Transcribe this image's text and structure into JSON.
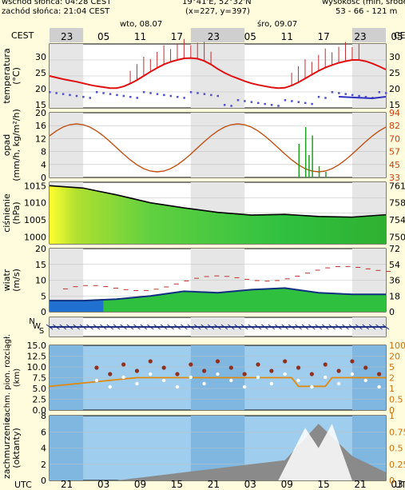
{
  "header": {
    "sunrise": "wschód słońca: 04:28 CEST",
    "sunset": "zachód słońca: 21:04 CEST",
    "location": "19°41'E, 52°32'N",
    "grid": "(x=227, y=397)",
    "altitude_label": "wysokość (min, środek",
    "altitude_values": "53 - 66 - 121 m"
  },
  "timezone_top": "CEST",
  "timezone_bottom": "UTC",
  "days": [
    "wto, 08.07",
    "śro, 09.07"
  ],
  "top_hours": [
    "23",
    "05",
    "11",
    "17",
    "23",
    "05",
    "11",
    "17",
    "23",
    "05"
  ],
  "bottom_hours": [
    "21",
    "03",
    "09",
    "15",
    "21",
    "03",
    "09",
    "15",
    "21",
    "03"
  ],
  "panels": {
    "temperature": {
      "ylabel": [
        "temperatura",
        "(°C)"
      ],
      "ticks": [
        "30",
        "25",
        "20",
        "15"
      ]
    },
    "precip": {
      "ylabel": [
        "opad",
        "(mm/h, kg/m²/h)"
      ],
      "ticks_left": [
        "20",
        "16",
        "12",
        "8",
        "4",
        "0"
      ],
      "ticks_right": [
        "94",
        "82",
        "70",
        "57",
        "45",
        "33"
      ]
    },
    "pressure": {
      "ylabel": [
        "ciśnienie",
        "(hPa)"
      ],
      "ticks_left": [
        "1015",
        "1010",
        "1005",
        "1000"
      ],
      "ticks_right": [
        "761",
        "758",
        "754",
        "750"
      ]
    },
    "wind": {
      "ylabel": [
        "wiatr",
        "(m/s)"
      ],
      "ticks_left": [
        "20",
        "15",
        "10",
        "5",
        "0"
      ],
      "ticks_right": [
        "72",
        "54",
        "36",
        "18",
        "0"
      ]
    },
    "direction": {
      "ylabel": [
        "N",
        "W",
        "S"
      ]
    },
    "visibility": {
      "ylabel": [
        "zachm. pion. rozciągł.",
        "(km)"
      ],
      "ticks_left": [
        "15.0",
        "12.5",
        "10.0",
        "7.5",
        "5.0",
        "2.5",
        "0.0"
      ],
      "ticks_right": [
        "100",
        "20",
        "5",
        "2",
        "1",
        "0.5",
        "0"
      ]
    },
    "cloud": {
      "ylabel": [
        "zachmurzenie",
        "(oktanty)"
      ],
      "ticks_left": [
        "8",
        "6",
        "4",
        "2",
        "0"
      ],
      "ticks_right": [
        "1",
        "0.75",
        "0.5",
        "0.25",
        "0"
      ]
    }
  },
  "colors": {
    "temp_line": "#e01010",
    "dew_line": "#3030c0",
    "precip_line": "#c05010",
    "pressure_fill": "#30b030",
    "wind_line": "#103080",
    "vis_line": "#e08a10",
    "night_shade": "#dcdcdc"
  },
  "chart_data": [
    {
      "type": "line",
      "title": "temperatura",
      "ylabel": "(°C)",
      "ylim": [
        14,
        34
      ],
      "x": [
        0,
        1,
        2,
        3,
        4,
        5,
        6,
        7,
        8,
        9,
        10,
        11,
        12,
        13,
        14,
        15,
        16,
        17,
        18,
        19,
        20,
        21,
        22,
        23,
        24,
        25,
        26,
        27,
        28,
        29,
        30,
        31,
        32,
        33,
        34,
        35,
        36,
        37,
        38,
        39,
        40,
        41,
        42,
        43,
        44,
        45,
        46,
        47,
        48,
        49,
        50
      ],
      "series": [
        {
          "values": [
            24,
            23.5,
            23,
            22.6,
            22.2,
            21.7,
            21.2,
            20.8,
            20.5,
            20.2,
            20.2,
            20.7,
            21.6,
            22.7,
            24,
            25.3,
            26.5,
            27.6,
            28.4,
            29,
            29.5,
            29.6,
            29.4,
            28.7,
            27.6,
            26.2,
            25,
            24,
            23.2,
            22.4,
            21.7,
            21.2,
            20.8,
            20.4,
            20.2,
            20.3,
            21,
            22,
            23.2,
            24.4,
            25.6,
            26.6,
            27.4,
            28.1,
            28.6,
            29,
            29,
            28.6,
            27.9,
            27,
            26
          ]
        }
      ]
    },
    {
      "type": "line",
      "title": "opad",
      "ylabel": "(mm/h, kg/m²/h)",
      "ylim": [
        0,
        20
      ],
      "x": [
        0,
        5,
        10,
        15,
        20,
        25,
        30,
        35,
        40,
        45
      ],
      "series": [
        {
          "values": [
            0,
            0,
            0,
            0,
            0,
            0,
            0,
            0,
            2,
            0
          ]
        }
      ]
    },
    {
      "type": "area",
      "title": "ciśnienie",
      "ylabel": "(hPa)",
      "ylim": [
        998,
        1016
      ],
      "x": [
        0,
        5,
        10,
        15,
        20,
        25,
        30,
        35,
        40,
        45,
        50
      ],
      "series": [
        {
          "values": [
            1015,
            1014.3,
            1012.3,
            1010,
            1008.5,
            1007.2,
            1006.4,
            1006.6,
            1006,
            1005.8,
            1006.5
          ]
        }
      ]
    },
    {
      "type": "line",
      "title": "wiatr",
      "ylabel": "(m/s)",
      "ylim": [
        0,
        20
      ],
      "x": [
        0,
        5,
        10,
        15,
        20,
        25,
        30,
        35,
        40,
        45,
        50
      ],
      "series": [
        {
          "values": [
            3.5,
            3.5,
            4,
            5,
            6.5,
            6,
            7,
            7.5,
            6,
            5.5,
            5.5
          ]
        }
      ]
    },
    {
      "type": "line",
      "title": "zachmurzenie",
      "ylabel": "(oktanty)",
      "ylim": [
        0,
        8
      ],
      "x": [
        0,
        5,
        10,
        15,
        20,
        25,
        30,
        35,
        40,
        45,
        50
      ],
      "series": [
        {
          "values": [
            0,
            0,
            0,
            0.5,
            1,
            1.5,
            2,
            2.5,
            7,
            3,
            1
          ]
        }
      ]
    }
  ]
}
